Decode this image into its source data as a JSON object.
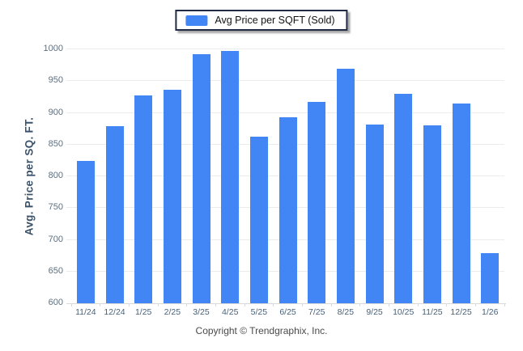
{
  "legend": {
    "label": "Avg Price per SQFT (Sold)"
  },
  "footer": {
    "copyright": "Copyright © Trendgraphix, Inc."
  },
  "colors": {
    "bar": "#4285F4",
    "legend_border": "#222B45",
    "grid": "#ECECEC",
    "axis_line": "#D9D9D9",
    "y_title": "#3A536B",
    "y_tick_label": "#5F6F7E",
    "x_tick_label": "#47617B",
    "footer_text": "#4A4A4A"
  },
  "chart_data": {
    "type": "bar",
    "title": "",
    "xlabel": "",
    "ylabel": "Avg. Price per SQ. FT.",
    "categories": [
      "11/24",
      "12/24",
      "1/25",
      "2/25",
      "3/25",
      "4/25",
      "5/25",
      "6/25",
      "7/25",
      "8/25",
      "9/25",
      "10/25",
      "11/25",
      "12/25",
      "1/26"
    ],
    "series": [
      {
        "name": "Avg Price per SQFT (Sold)",
        "values": [
          824,
          879,
          928,
          936,
          992,
          997,
          862,
          893,
          917,
          969,
          881,
          930,
          880,
          915,
          679
        ]
      }
    ],
    "ylim": [
      600,
      1000
    ],
    "yticks": [
      600,
      650,
      700,
      750,
      800,
      850,
      900,
      950,
      1000
    ],
    "ytick_step": 50,
    "grid": true,
    "legend_position": "top-center"
  }
}
